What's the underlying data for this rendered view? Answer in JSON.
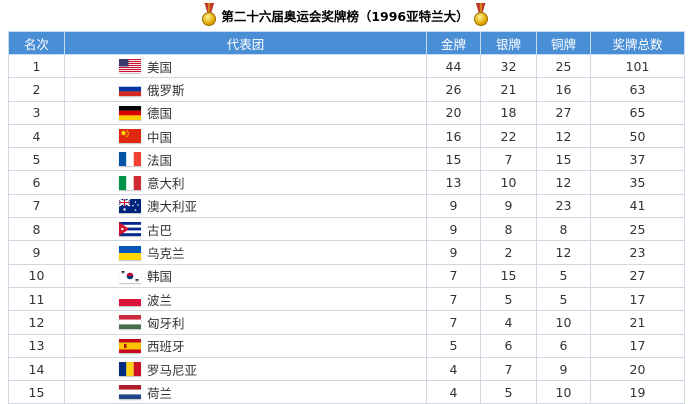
{
  "title": "第二十六届奥运会奖牌榜（1996亚特兰大）",
  "headers": {
    "rank": "名次",
    "team": "代表团",
    "gold": "金牌",
    "silver": "银牌",
    "bronze": "铜牌",
    "total": "奖牌总数"
  },
  "colors": {
    "header_bg": "#4a8fd6",
    "header_text": "#ffffff",
    "border": "#cfd8e2"
  },
  "rows": [
    {
      "rank": "1",
      "team": "美国",
      "flag": "usa-flag-icon",
      "gold": "44",
      "silver": "32",
      "bronze": "25",
      "total": "101"
    },
    {
      "rank": "2",
      "team": "俄罗斯",
      "flag": "russia-flag-icon",
      "gold": "26",
      "silver": "21",
      "bronze": "16",
      "total": "63"
    },
    {
      "rank": "3",
      "team": "德国",
      "flag": "germany-flag-icon",
      "gold": "20",
      "silver": "18",
      "bronze": "27",
      "total": "65"
    },
    {
      "rank": "4",
      "team": "中国",
      "flag": "china-flag-icon",
      "gold": "16",
      "silver": "22",
      "bronze": "12",
      "total": "50"
    },
    {
      "rank": "5",
      "team": "法国",
      "flag": "france-flag-icon",
      "gold": "15",
      "silver": "7",
      "bronze": "15",
      "total": "37"
    },
    {
      "rank": "6",
      "team": "意大利",
      "flag": "italy-flag-icon",
      "gold": "13",
      "silver": "10",
      "bronze": "12",
      "total": "35"
    },
    {
      "rank": "7",
      "team": "澳大利亚",
      "flag": "australia-flag-icon",
      "gold": "9",
      "silver": "9",
      "bronze": "23",
      "total": "41"
    },
    {
      "rank": "8",
      "team": "古巴",
      "flag": "cuba-flag-icon",
      "gold": "9",
      "silver": "8",
      "bronze": "8",
      "total": "25"
    },
    {
      "rank": "9",
      "team": "乌克兰",
      "flag": "ukraine-flag-icon",
      "gold": "9",
      "silver": "2",
      "bronze": "12",
      "total": "23"
    },
    {
      "rank": "10",
      "team": "韩国",
      "flag": "south-korea-flag-icon",
      "gold": "7",
      "silver": "15",
      "bronze": "5",
      "total": "27"
    },
    {
      "rank": "11",
      "team": "波兰",
      "flag": "poland-flag-icon",
      "gold": "7",
      "silver": "5",
      "bronze": "5",
      "total": "17"
    },
    {
      "rank": "12",
      "team": "匈牙利",
      "flag": "hungary-flag-icon",
      "gold": "7",
      "silver": "4",
      "bronze": "10",
      "total": "21"
    },
    {
      "rank": "13",
      "team": "西班牙",
      "flag": "spain-flag-icon",
      "gold": "5",
      "silver": "6",
      "bronze": "6",
      "total": "17"
    },
    {
      "rank": "14",
      "team": "罗马尼亚",
      "flag": "romania-flag-icon",
      "gold": "4",
      "silver": "7",
      "bronze": "9",
      "total": "20"
    },
    {
      "rank": "15",
      "team": "荷兰",
      "flag": "netherlands-flag-icon",
      "gold": "4",
      "silver": "5",
      "bronze": "10",
      "total": "19"
    }
  ]
}
